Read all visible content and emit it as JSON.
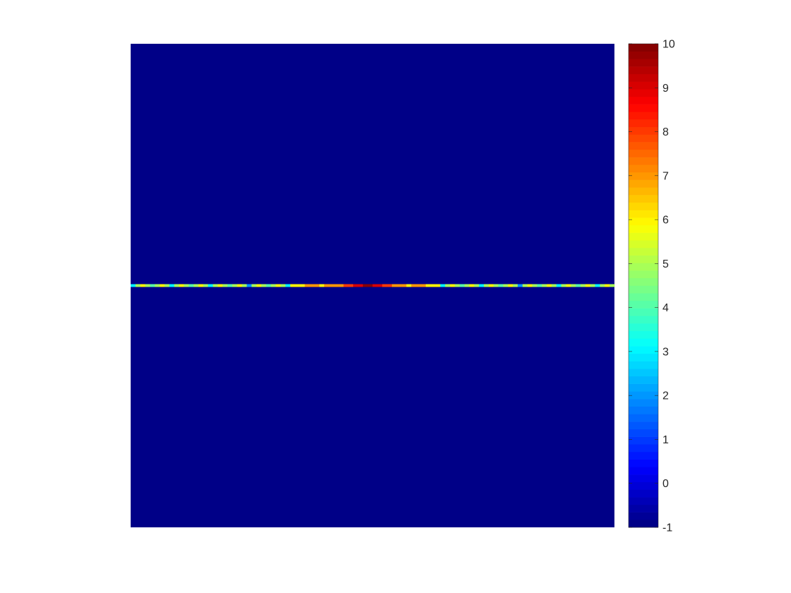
{
  "chart_data": {
    "type": "heatmap",
    "title": "",
    "xlabel": "",
    "ylabel": "",
    "background_value": -1,
    "highlight_row": {
      "position_fraction_from_top": 0.5,
      "values": [
        3,
        5,
        6,
        5,
        4,
        5,
        6,
        5,
        3,
        5,
        6,
        5,
        4,
        5,
        6,
        5,
        3,
        5,
        6,
        5,
        4,
        5,
        6,
        5,
        2,
        5,
        6,
        5,
        4,
        5,
        6,
        5,
        3,
        6,
        6,
        6,
        7,
        7,
        7,
        6,
        7,
        7,
        7,
        7,
        8,
        8,
        9,
        9,
        10,
        10,
        9,
        9,
        8,
        8,
        7,
        7,
        7,
        6,
        7,
        7,
        7,
        6,
        6,
        6,
        3,
        5,
        6,
        5,
        4,
        5,
        6,
        5,
        3,
        5,
        6,
        5,
        4,
        5,
        6,
        5,
        2,
        5,
        6,
        5,
        4,
        5,
        6,
        5,
        3,
        5,
        6,
        5,
        4,
        5,
        6,
        5,
        3,
        5,
        6,
        5
      ]
    },
    "colorbar": {
      "colormap": "jet",
      "levels": 64,
      "range": [
        -1,
        10
      ],
      "ticks": [
        -1,
        0,
        1,
        2,
        3,
        4,
        5,
        6,
        7,
        8,
        9,
        10
      ],
      "tick_labels": [
        "-1",
        "0",
        "1",
        "2",
        "3",
        "4",
        "5",
        "6",
        "7",
        "8",
        "9",
        "10"
      ]
    },
    "grid": false,
    "legend": "none"
  }
}
